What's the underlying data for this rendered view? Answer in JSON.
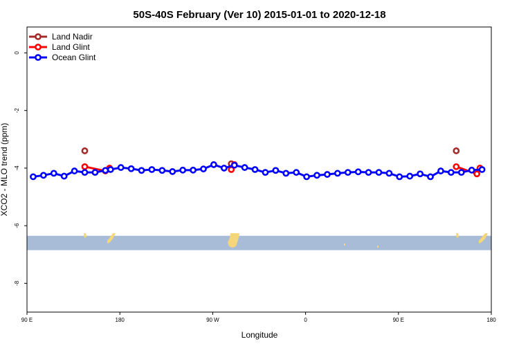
{
  "chart_data": {
    "type": "line",
    "title": "50S-40S February (Ver 10)   2015-01-01 to 2020-12-18",
    "xlabel": "Longitude",
    "ylabel": "XCO2 - MLO trend (ppm)",
    "xlim": [
      90,
      540
    ],
    "ylim": [
      -9,
      0.9
    ],
    "x_ticks": [
      {
        "value": 90,
        "label": "90 E"
      },
      {
        "value": 180,
        "label": "180"
      },
      {
        "value": 270,
        "label": "90 W"
      },
      {
        "value": 360,
        "label": "0"
      },
      {
        "value": 450,
        "label": "90 E"
      },
      {
        "value": 540,
        "label": "180"
      }
    ],
    "y_ticks": [
      {
        "value": 0,
        "label": "0"
      },
      {
        "value": -2,
        "label": "-2"
      },
      {
        "value": -4,
        "label": "-4"
      },
      {
        "value": -6,
        "label": "-6"
      },
      {
        "value": -8,
        "label": "-8"
      }
    ],
    "legend_position": "top-left",
    "background_map": {
      "description": "latitude band strip",
      "ocean_color": "#a8bcd8",
      "land_color": "#f5d67a",
      "y_range": [
        -6.85,
        -6.35
      ]
    },
    "series": [
      {
        "name": "Land Nadir",
        "color": "#a52a2a",
        "x": [
          146,
          288,
          506
        ],
        "values": [
          -3.4,
          -3.85,
          -3.4
        ]
      },
      {
        "name": "Land Glint",
        "color": "#ff0000",
        "x": [
          146,
          166,
          170,
          288,
          291,
          506,
          526,
          529
        ],
        "values": [
          -3.95,
          -4.1,
          -4.0,
          -4.05,
          -3.88,
          -3.95,
          -4.2,
          -4.0
        ]
      },
      {
        "name": "Ocean Glint",
        "color": "#0000ff",
        "x": [
          96,
          106,
          116,
          126,
          136,
          146,
          156,
          166,
          171,
          181,
          191,
          201,
          211,
          221,
          231,
          241,
          251,
          261,
          271,
          281,
          291,
          301,
          311,
          321,
          331,
          341,
          351,
          361,
          371,
          381,
          391,
          401,
          411,
          421,
          431,
          441,
          451,
          461,
          471,
          481,
          491,
          501,
          511,
          521,
          531
        ],
        "values": [
          -4.3,
          -4.25,
          -4.18,
          -4.28,
          -4.1,
          -4.15,
          -4.15,
          -4.08,
          -4.05,
          -3.98,
          -4.02,
          -4.08,
          -4.05,
          -4.08,
          -4.12,
          -4.07,
          -4.07,
          -4.03,
          -3.88,
          -4.0,
          -3.9,
          -3.98,
          -4.05,
          -4.15,
          -4.08,
          -4.18,
          -4.15,
          -4.3,
          -4.25,
          -4.22,
          -4.18,
          -4.15,
          -4.13,
          -4.15,
          -4.15,
          -4.18,
          -4.3,
          -4.28,
          -4.2,
          -4.3,
          -4.1,
          -4.15,
          -4.15,
          -4.07,
          -4.05
        ]
      }
    ]
  }
}
